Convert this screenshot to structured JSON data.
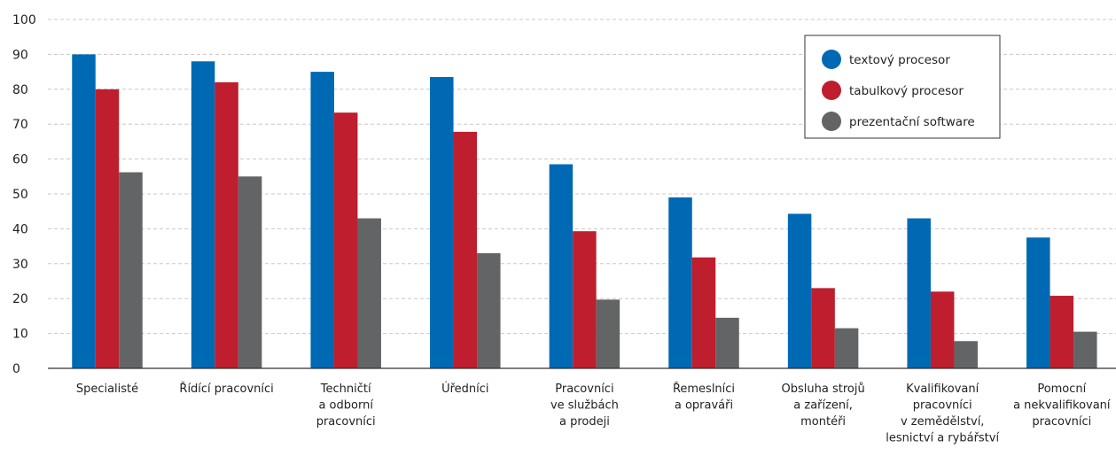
{
  "chart_data": {
    "type": "bar",
    "title": "",
    "xlabel": "",
    "ylabel": "",
    "ylim": [
      0,
      100
    ],
    "yticks": [
      0,
      10,
      20,
      30,
      40,
      50,
      60,
      70,
      80,
      90,
      100
    ],
    "grid": "horizontal dashed",
    "legend_position": "top-right",
    "categories": [
      [
        "Specialisté"
      ],
      [
        "Řídící pracovníci"
      ],
      [
        "Techničtí",
        "a odborní",
        "pracovníci"
      ],
      [
        "Úředníci"
      ],
      [
        "Pracovníci",
        "ve službách",
        "a prodeji"
      ],
      [
        "Řemeslníci",
        "a opraváři"
      ],
      [
        "Obsluha strojů",
        "a zařízení,",
        "montéři"
      ],
      [
        "Kvalifikovaní",
        "pracovníci",
        "v zemědělství,",
        "lesnictví a rybářství"
      ],
      [
        "Pomocní",
        "a nekvalifikovaní",
        "pracovníci"
      ]
    ],
    "series": [
      {
        "name": "textový procesor",
        "color": "#0069b4",
        "values": [
          90,
          88,
          85,
          83.5,
          58.5,
          49,
          44.3,
          43,
          37.5
        ]
      },
      {
        "name": "tabulkový procesor",
        "color": "#be1e2d",
        "values": [
          80,
          82,
          73.3,
          67.8,
          39.3,
          31.8,
          23,
          22,
          20.8
        ]
      },
      {
        "name": "prezentační software",
        "color": "#636466",
        "values": [
          56.2,
          55,
          43,
          33,
          19.7,
          14.5,
          11.5,
          7.8,
          10.5
        ]
      }
    ]
  }
}
